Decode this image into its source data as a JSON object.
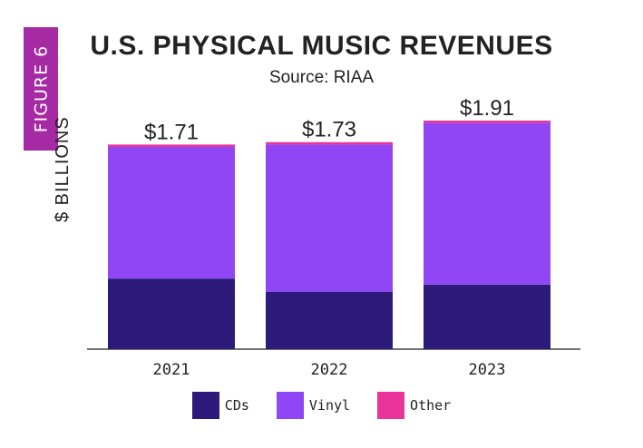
{
  "figure_tag": "FIGURE 6",
  "chart_data": {
    "type": "bar",
    "stacked": true,
    "title": "U.S. PHYSICAL MUSIC REVENUES",
    "subtitle": "Source: RIAA",
    "ylabel": "$ BILLIONS",
    "xlabel": "",
    "categories": [
      "2021",
      "2022",
      "2023"
    ],
    "totals": [
      "$1.71",
      "$1.73",
      "$1.91"
    ],
    "total_values": [
      1.71,
      1.73,
      1.91
    ],
    "series": [
      {
        "name": "CDs",
        "color": "#2d1a7a",
        "values": [
          0.59,
          0.48,
          0.54
        ]
      },
      {
        "name": "Vinyl",
        "color": "#9146f5",
        "values": [
          1.1,
          1.23,
          1.35
        ]
      },
      {
        "name": "Other",
        "color": "#e8339a",
        "values": [
          0.02,
          0.02,
          0.02
        ]
      }
    ],
    "ylim": [
      0,
      1.91
    ],
    "grid": false
  }
}
